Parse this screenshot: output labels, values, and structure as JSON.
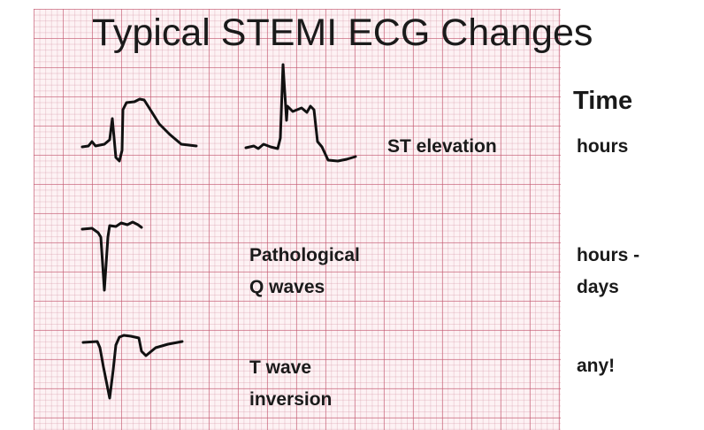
{
  "title": "Typical STEMI ECG Changes",
  "time_header": "Time",
  "rows": [
    {
      "label_lines": [
        "ST elevation"
      ],
      "time_lines": [
        "hours"
      ]
    },
    {
      "label_lines": [
        "Pathological",
        "Q waves"
      ],
      "time_lines": [
        "hours -",
        "days"
      ]
    },
    {
      "label_lines": [
        "T wave",
        "inversion"
      ],
      "time_lines": [
        "any!"
      ]
    }
  ],
  "colors": {
    "grid_major": "#c4566e",
    "grid_minor": "#d696a6",
    "paper": "#fdf2f4",
    "ink": "#111111"
  }
}
